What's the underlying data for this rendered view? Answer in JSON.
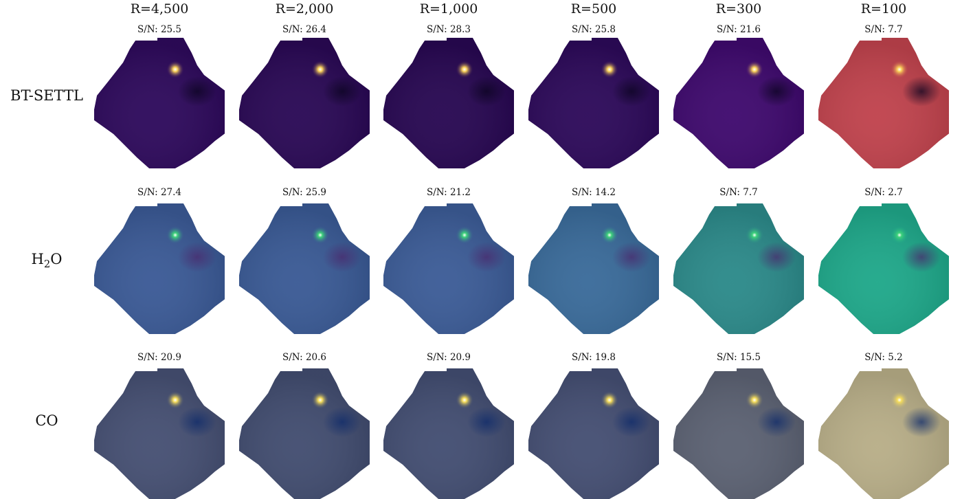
{
  "figure": {
    "columns": [
      "R=4,500",
      "R=2,000",
      "R=1,000",
      "R=500",
      "R=300",
      "R=100"
    ],
    "rows": [
      {
        "label": "BT-SETTL",
        "label_main": "BT-SETTL",
        "label_sub": "",
        "label_tail": "",
        "colormap": "inferno",
        "sn_labels": [
          "S/N: 25.5",
          "S/N: 26.4",
          "S/N: 28.3",
          "S/N: 25.8",
          "S/N: 21.6",
          "S/N: 7.7"
        ],
        "background_level": [
          0.12,
          0.1,
          0.1,
          0.12,
          0.18,
          0.48
        ],
        "dark_spot_level": [
          0.03,
          0.02,
          0.02,
          0.03,
          0.04,
          0.05
        ],
        "colors": {
          "bg": [
            "#2e0a5c",
            "#2a0955",
            "#280852",
            "#2d0a5a",
            "#3f0a6e",
            "#c0434d"
          ],
          "spot": "#fbd35a",
          "dark": "#0b0420"
        }
      },
      {
        "label": "H2O",
        "label_main": "H",
        "label_sub": "2",
        "label_tail": "O",
        "colormap": "viridis",
        "sn_labels": [
          "S/N: 27.4",
          "S/N: 25.9",
          "S/N: 21.2",
          "S/N: 14.2",
          "S/N: 7.7",
          "S/N: 2.7"
        ],
        "background_level": [
          0.25,
          0.25,
          0.27,
          0.32,
          0.45,
          0.6
        ],
        "dark_spot_level": [
          0.15,
          0.15,
          0.16,
          0.12,
          0.2,
          0.1
        ],
        "colors": {
          "bg": [
            "#3b5a96",
            "#3a5a95",
            "#3c5c97",
            "#3a6b9a",
            "#2c8a8a",
            "#1fa88a"
          ],
          "spot": "#3dd27a",
          "dark": "#4a2a6e"
        }
      },
      {
        "label": "CO",
        "label_main": "CO",
        "label_sub": "",
        "label_tail": "",
        "colormap": "cividis",
        "sn_labels": [
          "S/N: 20.9",
          "S/N: 20.6",
          "S/N: 20.9",
          "S/N: 19.8",
          "S/N: 15.5",
          "S/N: 5.2"
        ],
        "background_level": [
          0.3,
          0.28,
          0.28,
          0.3,
          0.38,
          0.7
        ],
        "dark_spot_level": [
          0.1,
          0.1,
          0.1,
          0.1,
          0.12,
          0.05
        ],
        "colors": {
          "bg": [
            "#465073",
            "#424d70",
            "#434e72",
            "#454f73",
            "#5c6273",
            "#b8ae88"
          ],
          "spot": "#f5dc5a",
          "dark": "#0e2a6a"
        }
      }
    ],
    "companion_spot": "bright planet signal near upper right of each map"
  }
}
